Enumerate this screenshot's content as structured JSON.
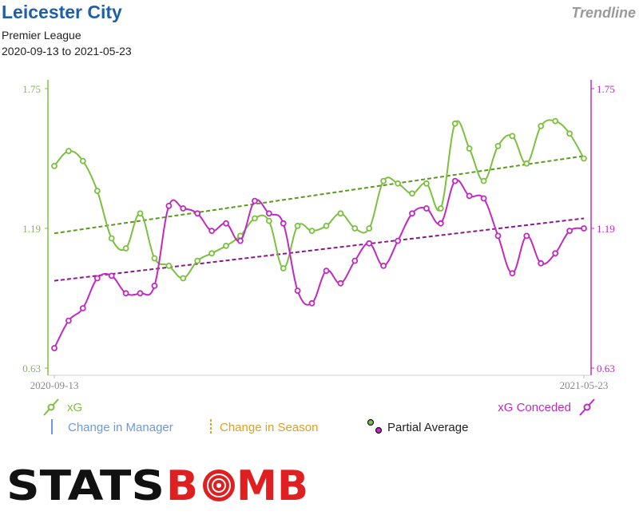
{
  "header": {
    "team": "Leicester City",
    "brand_tag": "Trendline",
    "competition": "Premier League",
    "date_range": "2020-09-13 to 2021-05-23"
  },
  "colors": {
    "xg": "#7cc040",
    "xg_trend": "#5a9a20",
    "xga": "#c02ac0",
    "xga_trend": "#8a1a8a",
    "manager": "#6a9ae0",
    "season": "#e0a020",
    "logo_black": "#111111",
    "logo_red": "#e02020"
  },
  "chart_data": {
    "type": "line",
    "x_label_start": "2020-09-13",
    "x_label_end": "2021-05-23",
    "ylim": [
      0.63,
      1.75
    ],
    "y_ticks": [
      "0.63",
      "1.19",
      "1.75"
    ],
    "series": [
      {
        "name": "xG",
        "axis": "left",
        "values": [
          1.44,
          1.5,
          1.46,
          1.34,
          1.15,
          1.11,
          1.25,
          1.07,
          1.04,
          0.99,
          1.06,
          1.09,
          1.12,
          1.16,
          1.23,
          1.22,
          1.03,
          1.2,
          1.18,
          1.2,
          1.25,
          1.19,
          1.19,
          1.38,
          1.37,
          1.33,
          1.37,
          1.27,
          1.61,
          1.51,
          1.38,
          1.52,
          1.56,
          1.45,
          1.6,
          1.62,
          1.57,
          1.47
        ]
      },
      {
        "name": "xG Conceded",
        "axis": "right",
        "values": [
          0.71,
          0.82,
          0.87,
          0.99,
          1.0,
          0.93,
          0.93,
          0.96,
          1.28,
          1.27,
          1.25,
          1.18,
          1.21,
          1.14,
          1.3,
          1.25,
          1.21,
          0.94,
          0.89,
          1.02,
          0.97,
          1.06,
          1.13,
          1.04,
          1.14,
          1.25,
          1.27,
          1.21,
          1.38,
          1.32,
          1.31,
          1.16,
          1.01,
          1.16,
          1.05,
          1.09,
          1.18,
          1.19
        ]
      }
    ],
    "trendlines": [
      {
        "series": "xG",
        "start": 1.17,
        "end": 1.48
      },
      {
        "series": "xG Conceded",
        "start": 0.98,
        "end": 1.23
      }
    ]
  },
  "legend": {
    "xg": "xG",
    "xga": "xG Conceded",
    "manager": "Change in Manager",
    "season": "Change in Season",
    "partial": "Partial Average"
  },
  "logo": {
    "part1": "STATS",
    "part2_a": "B",
    "part2_b": "MB"
  }
}
